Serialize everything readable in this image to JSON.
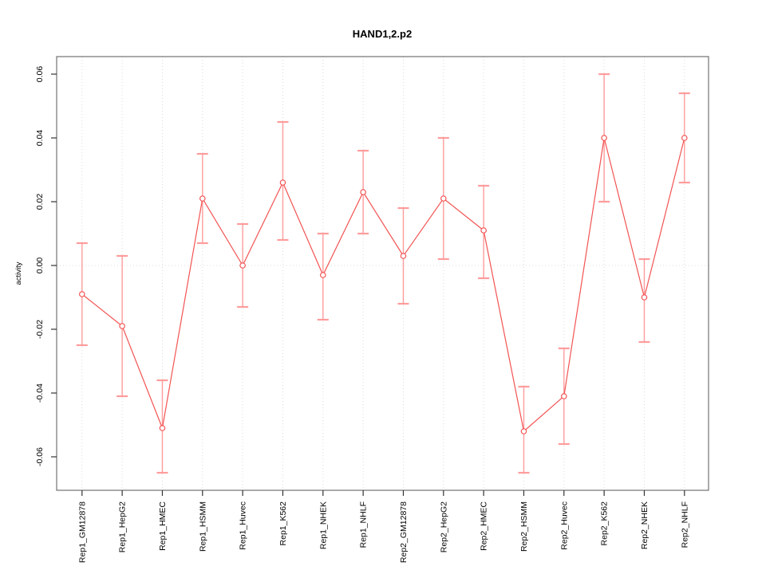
{
  "figure": {
    "background_color": "#ffffff"
  },
  "chart_data": {
    "type": "line",
    "title": "HAND1,2.p2",
    "xlabel": "",
    "ylabel": "activity",
    "legend": "none",
    "marker": "open-circle",
    "error_bars": true,
    "grid": {
      "vertical": "dotted line at every category",
      "horizontal": "dotted line at zero only"
    },
    "ylim": [
      -0.0705,
      0.0655
    ],
    "ytick_values": [
      0.06,
      0.04,
      0.02,
      0.0,
      -0.02,
      -0.04,
      -0.06
    ],
    "ytick_labels": [
      "0.06",
      "0.04",
      "0.02",
      "0.00",
      "-0.02",
      "-0.04",
      "-0.06"
    ],
    "categories": [
      "Rep1_GM12878",
      "Rep1_HepG2",
      "Rep1_HMEC",
      "Rep1_HSMM",
      "Rep1_Huvec",
      "Rep1_K562",
      "Rep1_NHEK",
      "Rep1_NHLF",
      "Rep2_GM12878",
      "Rep2_HepG2",
      "Rep2_HMEC",
      "Rep2_HSMM",
      "Rep2_Huvec",
      "Rep2_K562",
      "Rep2_NHEK",
      "Rep2_NHLF"
    ],
    "values": [
      -0.009,
      -0.019,
      -0.051,
      0.021,
      0.0,
      0.026,
      -0.003,
      0.023,
      0.003,
      0.021,
      0.011,
      -0.052,
      -0.041,
      0.04,
      -0.01,
      0.04
    ],
    "error_high": [
      0.007,
      0.003,
      -0.036,
      0.035,
      0.013,
      0.045,
      0.01,
      0.036,
      0.018,
      0.04,
      0.025,
      -0.038,
      -0.026,
      0.06,
      0.002,
      0.054
    ],
    "error_low": [
      -0.025,
      -0.041,
      -0.065,
      0.007,
      -0.013,
      0.008,
      -0.017,
      0.01,
      -0.012,
      0.002,
      -0.004,
      -0.065,
      -0.056,
      0.02,
      -0.024,
      0.026
    ],
    "colors": {
      "line": "#f35353",
      "marker": "#f35353",
      "error_bar": "#ff9c9c",
      "grid": "#dcdcdc",
      "frame": "#555555",
      "tick": "#333333",
      "text": "#000000"
    }
  }
}
